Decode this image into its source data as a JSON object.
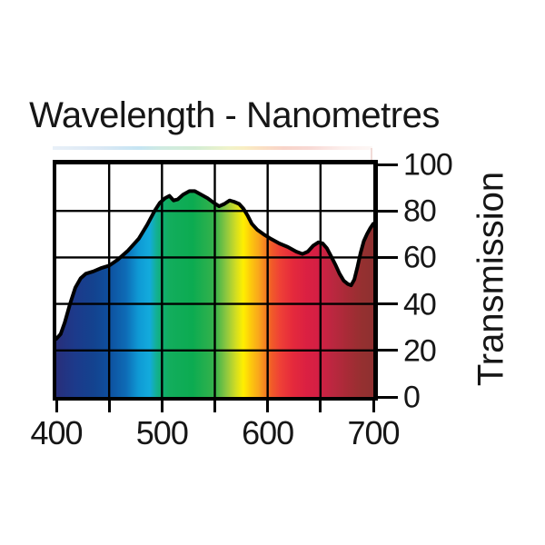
{
  "page": {
    "background": "#ffffff"
  },
  "chart_data": {
    "type": "area",
    "title": "Wavelength - Nanometres",
    "xlabel": "Wavelength - Nanometres",
    "ylabel": "Transmission",
    "xlim": [
      400,
      700
    ],
    "ylim": [
      0,
      100
    ],
    "x_tick_values": [
      400,
      450,
      500,
      550,
      600,
      650,
      700
    ],
    "x_label_values": [
      400,
      500,
      600,
      700
    ],
    "x_tick_labels": [
      "400",
      "500",
      "600",
      "700"
    ],
    "y_tick_values": [
      0,
      20,
      40,
      60,
      80,
      100
    ],
    "y_tick_labels": [
      "100",
      "80",
      "60",
      "40",
      "20",
      "0"
    ],
    "y_label_values": [
      100,
      80,
      60,
      40,
      20,
      0
    ],
    "grid": true,
    "legend": false,
    "curve_color": "#000000",
    "grid_color": "#000000",
    "series": [
      {
        "name": "Transmission",
        "points": [
          [
            400,
            25
          ],
          [
            404,
            27
          ],
          [
            408,
            32
          ],
          [
            413,
            40
          ],
          [
            418,
            47
          ],
          [
            423,
            51
          ],
          [
            428,
            53
          ],
          [
            435,
            54
          ],
          [
            443,
            55.5
          ],
          [
            450,
            56.5
          ],
          [
            458,
            59
          ],
          [
            468,
            63
          ],
          [
            478,
            68
          ],
          [
            486,
            74
          ],
          [
            493,
            80
          ],
          [
            498,
            83.5
          ],
          [
            503,
            85.5
          ],
          [
            507,
            86.5
          ],
          [
            511,
            84.5
          ],
          [
            515,
            85
          ],
          [
            520,
            87
          ],
          [
            526,
            88.5
          ],
          [
            531,
            88.5
          ],
          [
            537,
            87
          ],
          [
            543,
            85.5
          ],
          [
            549,
            83.5
          ],
          [
            554,
            82
          ],
          [
            559,
            83
          ],
          [
            564,
            84.5
          ],
          [
            568,
            84
          ],
          [
            573,
            83
          ],
          [
            577,
            81
          ],
          [
            581,
            78
          ],
          [
            585,
            74.5
          ],
          [
            590,
            72
          ],
          [
            596,
            70
          ],
          [
            603,
            68
          ],
          [
            611,
            66
          ],
          [
            619,
            64.5
          ],
          [
            627,
            62.5
          ],
          [
            633,
            61.5
          ],
          [
            638,
            62.5
          ],
          [
            643,
            65
          ],
          [
            648,
            66.5
          ],
          [
            652,
            66
          ],
          [
            656,
            64
          ],
          [
            660,
            60.5
          ],
          [
            664,
            57
          ],
          [
            668,
            53
          ],
          [
            672,
            50
          ],
          [
            676,
            48.5
          ],
          [
            679,
            48
          ],
          [
            682,
            50.5
          ],
          [
            685,
            56
          ],
          [
            688,
            62
          ],
          [
            691,
            67
          ],
          [
            694,
            70
          ],
          [
            697,
            72.5
          ],
          [
            700,
            74.5
          ]
        ]
      }
    ],
    "spectrum_gradient_stops": [
      [
        0.0,
        "#282f7b"
      ],
      [
        0.06,
        "#1c3a8b"
      ],
      [
        0.12,
        "#13438f"
      ],
      [
        0.166,
        "#0e4f9e"
      ],
      [
        0.22,
        "#0e6cb6"
      ],
      [
        0.26,
        "#0f9ad5"
      ],
      [
        0.295,
        "#13abdc"
      ],
      [
        0.315,
        "#13b096"
      ],
      [
        0.333,
        "#10ae71"
      ],
      [
        0.36,
        "#12ad5c"
      ],
      [
        0.43,
        "#0cab51"
      ],
      [
        0.5,
        "#36b24b"
      ],
      [
        0.535,
        "#8ac641"
      ],
      [
        0.565,
        "#cfdc24"
      ],
      [
        0.59,
        "#ffef00"
      ],
      [
        0.615,
        "#fcc60e"
      ],
      [
        0.638,
        "#f9a71b"
      ],
      [
        0.658,
        "#f58220"
      ],
      [
        0.68,
        "#f15a29"
      ],
      [
        0.705,
        "#ef4136"
      ],
      [
        0.745,
        "#e52a3c"
      ],
      [
        0.79,
        "#da2042"
      ],
      [
        0.828,
        "#d41f44"
      ],
      [
        0.87,
        "#bc2740"
      ],
      [
        0.92,
        "#a72b36"
      ],
      [
        0.965,
        "#953030"
      ],
      [
        1.0,
        "#8e3030"
      ]
    ],
    "decor_strip_stops": [
      [
        0.0,
        "#e3ecf6"
      ],
      [
        0.15,
        "#d2e3f2"
      ],
      [
        0.27,
        "#b7def0"
      ],
      [
        0.34,
        "#c3e6da"
      ],
      [
        0.45,
        "#c9e8c9"
      ],
      [
        0.55,
        "#ecf0bd"
      ],
      [
        0.6,
        "#f7e9b4"
      ],
      [
        0.65,
        "#f9d9b5"
      ],
      [
        0.72,
        "#f7c9bb"
      ],
      [
        0.8,
        "#f6cfc9"
      ],
      [
        0.9,
        "#fbe9e6"
      ],
      [
        1.0,
        "#fdf6f4"
      ]
    ]
  }
}
